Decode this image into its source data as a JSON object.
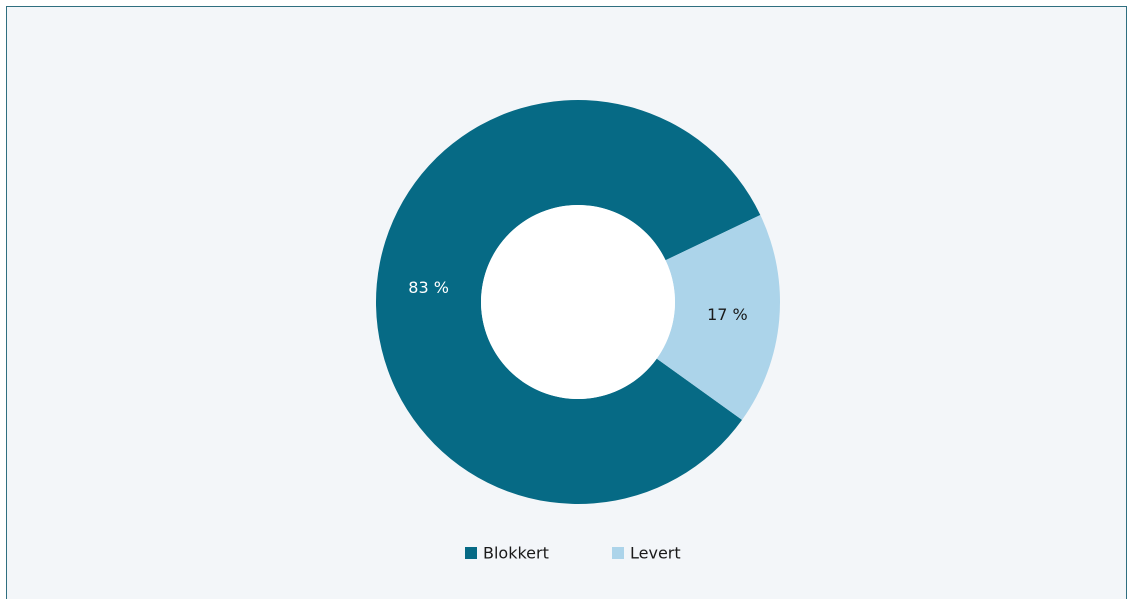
{
  "chart_data": {
    "type": "donut",
    "categories": [
      "Blokkert",
      "Levert"
    ],
    "values": [
      83,
      17
    ],
    "value_labels": [
      "83 %",
      "17 %"
    ],
    "colors": [
      "#066a85",
      "#acd4ea"
    ],
    "legend": "bottom"
  }
}
